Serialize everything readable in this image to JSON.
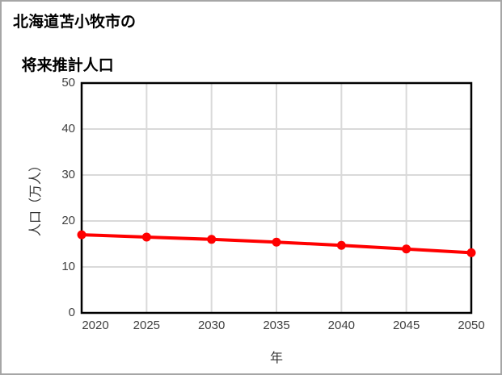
{
  "window": {
    "background": "#ffffff",
    "border_color": "#a6a6a6"
  },
  "title": {
    "line1": "北海道苫小牧市の",
    "line2": "将来推計人口"
  },
  "chart_data": {
    "type": "line",
    "title": "北海道苫小牧市の将来推計人口",
    "xlabel": "年",
    "ylabel": "人口（万人）",
    "x": [
      2020,
      2025,
      2030,
      2035,
      2040,
      2045,
      2050
    ],
    "series": [
      {
        "name": "将来推計人口",
        "color": "#ff0000",
        "values": [
          17.0,
          16.5,
          16.0,
          15.4,
          14.7,
          13.9,
          13.1
        ]
      }
    ],
    "ylim": [
      0,
      50
    ],
    "yticks": [
      "0",
      "10",
      "20",
      "30",
      "40",
      "50"
    ],
    "xticks": [
      "2020",
      "2025",
      "2030",
      "2035",
      "2040",
      "2045",
      "2050"
    ],
    "grid": true,
    "grid_color": "#d9d9d9",
    "axis_color": "#000000",
    "tick_label_color": "#404040",
    "marker": "circle",
    "legend_position": "none"
  }
}
